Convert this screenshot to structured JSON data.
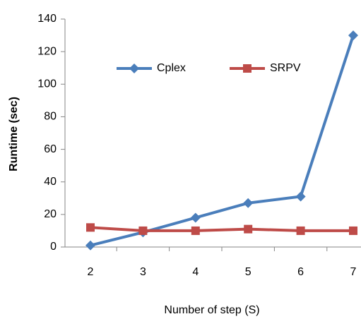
{
  "chart_data": {
    "type": "line",
    "x_label": "Number of step (S)",
    "y_label": "Runtime (sec)",
    "categories": [
      "2",
      "3",
      "4",
      "5",
      "6",
      "7"
    ],
    "series": [
      {
        "name": "Cplex",
        "color": "#4a7ebb",
        "values": [
          1,
          9,
          18,
          27,
          31,
          130
        ]
      },
      {
        "name": "SRPV",
        "color": "#be4b48",
        "values": [
          12,
          10,
          10,
          11,
          10,
          10
        ]
      }
    ],
    "ylim": [
      0,
      140
    ],
    "yticks": [
      0,
      20,
      40,
      60,
      80,
      100,
      120,
      140
    ],
    "grid": false,
    "legend": "top"
  }
}
